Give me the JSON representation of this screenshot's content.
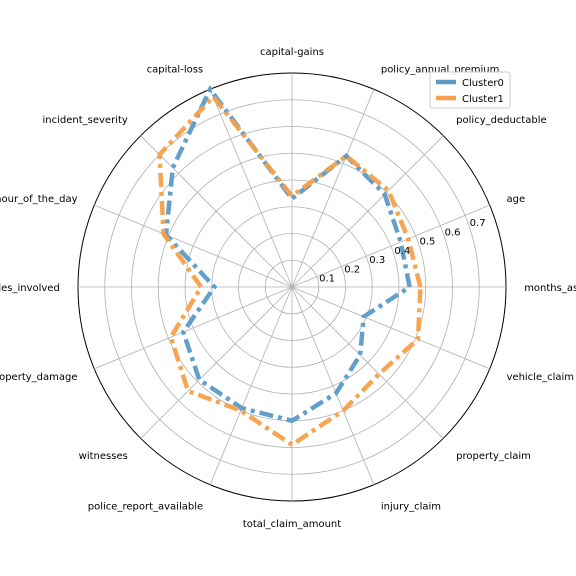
{
  "chart_data": {
    "type": "radar",
    "axes": [
      "months_as_customer",
      "age",
      "policy_deductable",
      "policy_annual_premium",
      "capital-gains",
      "capital-loss",
      "incident_severity",
      "incident_hour_of_the_day",
      "number_of_vehicles_involved",
      "property_damage",
      "witnesses",
      "police_report_available",
      "total_claim_amount",
      "injury_claim",
      "property_claim",
      "vehicle_claim"
    ],
    "rlim": [
      0,
      0.8
    ],
    "rticks": [
      0.1,
      0.2,
      0.3,
      0.4,
      0.5,
      0.6,
      0.7
    ],
    "rtick_labels": [
      "0.1",
      "0.2",
      "0.3",
      "0.4",
      "0.5",
      "0.6",
      "0.7"
    ],
    "series": [
      {
        "name": "Cluster0",
        "color": "#5b9bc6",
        "values": [
          0.44,
          0.44,
          0.49,
          0.53,
          0.33,
          0.8,
          0.63,
          0.51,
          0.29,
          0.44,
          0.49,
          0.49,
          0.5,
          0.43,
          0.36,
          0.29
        ]
      },
      {
        "name": "Cluster1",
        "color": "#f5a04a",
        "values": [
          0.48,
          0.47,
          0.51,
          0.53,
          0.34,
          0.77,
          0.7,
          0.52,
          0.34,
          0.49,
          0.55,
          0.5,
          0.59,
          0.5,
          0.46,
          0.51
        ]
      }
    ],
    "legend": {
      "position": "top-right",
      "entries": [
        "Cluster0",
        "Cluster1"
      ]
    },
    "grid": true
  }
}
